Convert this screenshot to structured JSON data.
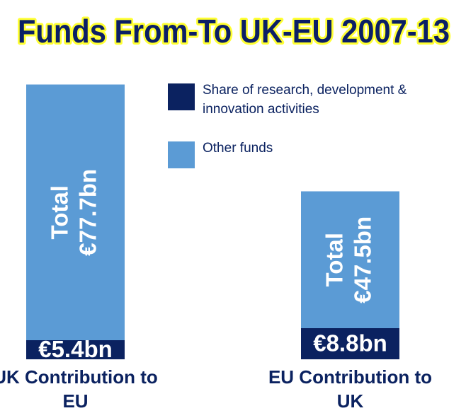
{
  "chart_data": {
    "type": "stacked-bar",
    "title": "Funds From-To UK-EU 2007-13",
    "categories": [
      "UK Contribution to EU",
      "EU Contribution to UK"
    ],
    "series": [
      {
        "name": "Share of research, development & innovation activities",
        "color": "#0b2260",
        "values": [
          5.4,
          8.8
        ],
        "value_labels": [
          "€5.4bn",
          "€8.8bn"
        ]
      },
      {
        "name": "Other funds",
        "color": "#5b9bd5",
        "values": [
          72.3,
          38.7
        ]
      }
    ],
    "totals": [
      77.7,
      47.5
    ],
    "total_labels": [
      "Total €77.7bn",
      "Total €47.5bn"
    ],
    "legend": "top-right"
  }
}
